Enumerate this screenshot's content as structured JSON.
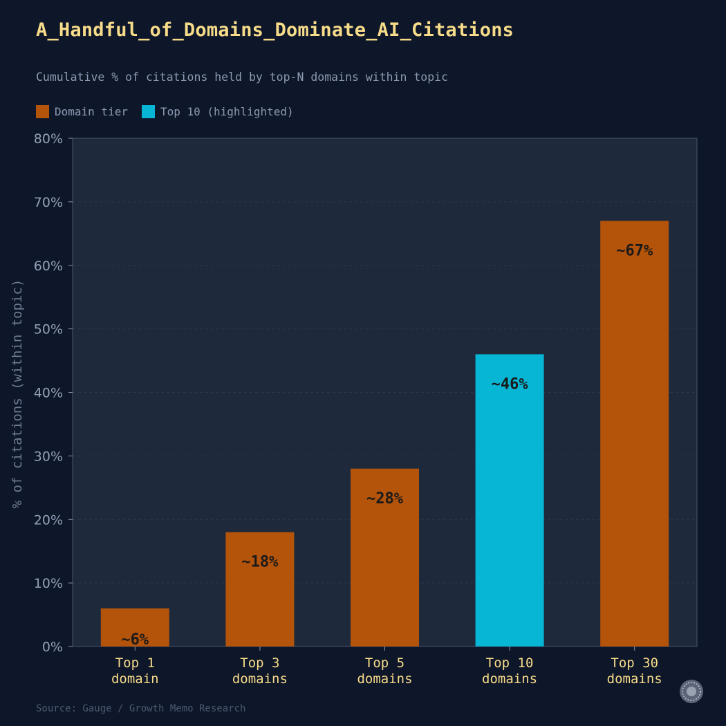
{
  "title": "A_Handful_of_Domains_Dominate_AI_Citations",
  "subtitle": "Cumulative % of citations held by top-N domains within topic",
  "legend": [
    {
      "label": "Domain tier",
      "color": "#b4530a"
    },
    {
      "label": "Top 10 (highlighted)",
      "color": "#06b6d4"
    }
  ],
  "source": "Source: Gauge / Growth Memo Research",
  "colors": {
    "background": "#0e1629",
    "plot_background": "#1e293b",
    "bar_default": "#b4530a",
    "bar_highlight": "#06b6d4",
    "tick_label": "#93a1b8",
    "category_label": "#f7dc8a",
    "value_label": "#1a1a1a"
  },
  "chart_data": {
    "type": "bar",
    "categories": [
      [
        "Top 1",
        "domain"
      ],
      [
        "Top 3",
        "domains"
      ],
      [
        "Top 5",
        "domains"
      ],
      [
        "Top 10",
        "domains"
      ],
      [
        "Top 30",
        "domains"
      ]
    ],
    "values": [
      6,
      18,
      28,
      46,
      67
    ],
    "value_labels": [
      "~6%",
      "~18%",
      "~28%",
      "~46%",
      "~67%"
    ],
    "highlight_index": 3,
    "ylabel": "% of citations (within topic)",
    "xlabel": "",
    "ylim": [
      0,
      80
    ],
    "yticks": [
      0,
      10,
      20,
      30,
      40,
      50,
      60,
      70,
      80
    ],
    "ytick_labels": [
      "0%",
      "10%",
      "20%",
      "30%",
      "40%",
      "50%",
      "60%",
      "70%",
      "80%"
    ],
    "grid": true
  }
}
